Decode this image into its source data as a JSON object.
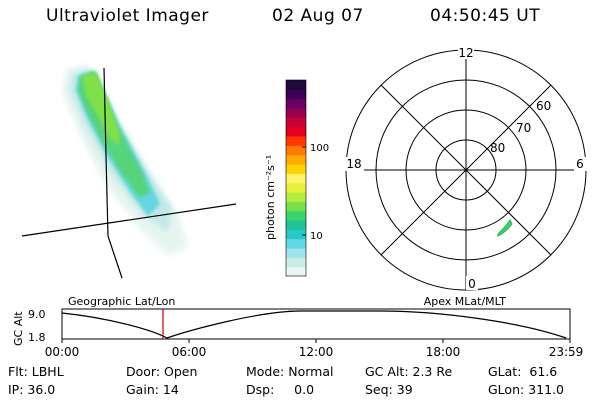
{
  "header": {
    "title": "Ultraviolet Imager",
    "date": "02 Aug 07",
    "time": "04:50:45 UT"
  },
  "colorbar": {
    "label": "photon cm⁻²s⁻¹",
    "ticks": [
      "100",
      "10"
    ],
    "colors": [
      "#e9f6f3",
      "#c7ece6",
      "#9ee4ea",
      "#5fd9e3",
      "#27c9c9",
      "#20c497",
      "#3dd36b",
      "#78e04c",
      "#b4ec3f",
      "#e4f43a",
      "#fff36b",
      "#ffd200",
      "#ffaa00",
      "#ff7a00",
      "#ff3a00",
      "#e5001c",
      "#c80035",
      "#99004d",
      "#6a0060",
      "#3a005a",
      "#1b0a3a"
    ]
  },
  "polar": {
    "clock_labels": {
      "top": "12",
      "left": "18",
      "right": "6",
      "bottom": "0"
    },
    "lat_labels": [
      "60",
      "70",
      "80"
    ]
  },
  "timeline": {
    "left_label": "Geographic Lat/Lon",
    "right_label": "Apex  MLat/MLT",
    "axis_label": "GC Alt",
    "y_ticks": [
      "9.0",
      "1.8"
    ],
    "x_ticks": [
      "00:00",
      "06:00",
      "12:00",
      "18:00",
      "23:59"
    ],
    "marker_color": "#cc0000"
  },
  "info": {
    "filter": "Flt: LBHL",
    "door": "Door: Open",
    "mode": "Mode: Normal",
    "gc_alt": "GC Alt: 2.3 Re",
    "glat": "GLat:  61.6",
    "ip": "IP: 36.0",
    "gain": "Gain: 14",
    "dsp": "Dsp:     0.0",
    "seq": "Seq: 39",
    "glon": "GLon: 311.0"
  }
}
